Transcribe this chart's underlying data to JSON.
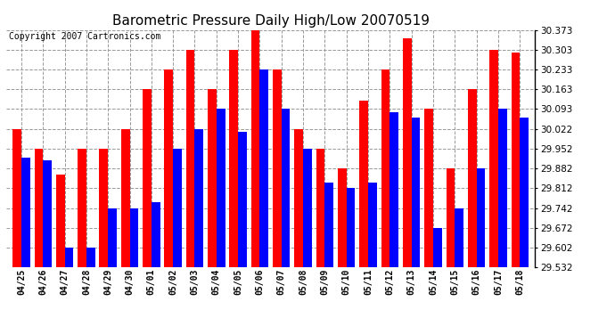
{
  "title": "Barometric Pressure Daily High/Low 20070519",
  "copyright": "Copyright 2007 Cartronics.com",
  "dates": [
    "04/25",
    "04/26",
    "04/27",
    "04/28",
    "04/29",
    "04/30",
    "05/01",
    "05/02",
    "05/03",
    "05/04",
    "05/05",
    "05/06",
    "05/07",
    "05/08",
    "05/09",
    "05/10",
    "05/11",
    "05/12",
    "05/13",
    "05/14",
    "05/15",
    "05/16",
    "05/17",
    "05/18"
  ],
  "highs": [
    30.022,
    29.952,
    29.862,
    29.952,
    29.952,
    30.022,
    30.163,
    30.233,
    30.303,
    30.163,
    30.303,
    30.373,
    30.233,
    30.022,
    29.952,
    29.882,
    30.123,
    30.233,
    30.343,
    30.093,
    29.882,
    30.163,
    30.303,
    30.293
  ],
  "lows": [
    29.922,
    29.912,
    29.602,
    29.602,
    29.742,
    29.742,
    29.762,
    29.952,
    30.022,
    30.093,
    30.013,
    30.233,
    30.093,
    29.952,
    29.832,
    29.812,
    29.832,
    30.083,
    30.063,
    29.672,
    29.742,
    29.882,
    30.093,
    30.063
  ],
  "high_color": "#ff0000",
  "low_color": "#0000ff",
  "background_color": "#ffffff",
  "grid_color": "#999999",
  "ymin": 29.532,
  "ymax": 30.373,
  "yticks": [
    29.532,
    29.602,
    29.672,
    29.742,
    29.812,
    29.882,
    29.952,
    30.022,
    30.093,
    30.163,
    30.233,
    30.303,
    30.373
  ],
  "title_fontsize": 11,
  "copyright_fontsize": 7,
  "bar_width": 0.4,
  "dpi": 100
}
